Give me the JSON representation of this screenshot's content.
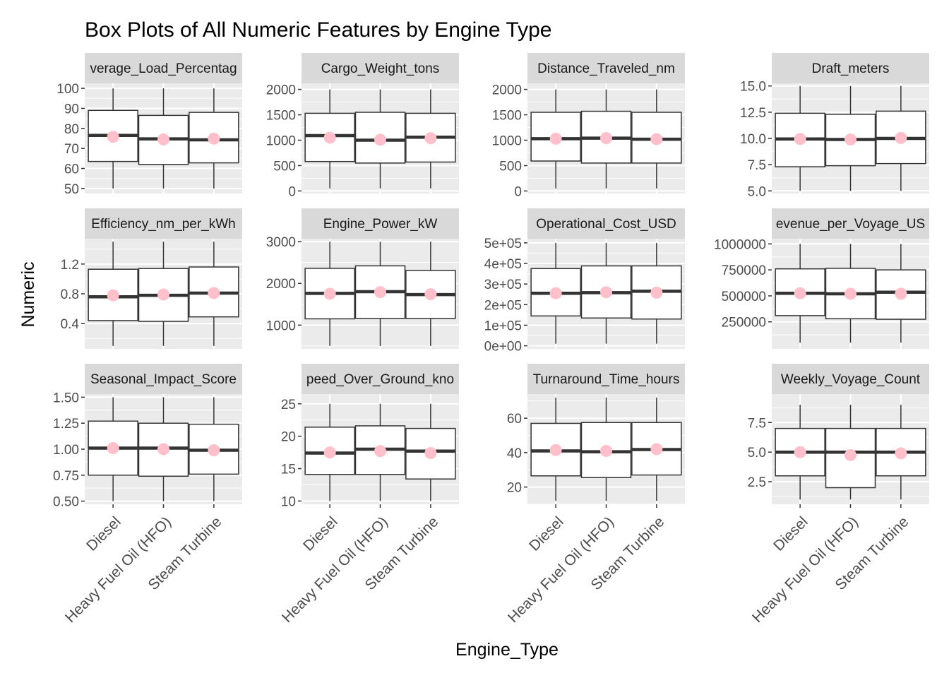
{
  "chart_data": {
    "type": "boxplot",
    "title": "Box Plots of All Numeric Features by Engine Type",
    "xlabel": "Engine_Type",
    "ylabel": "Numeric",
    "categories": [
      "Diesel",
      "Heavy Fuel Oil (HFO)",
      "Steam Turbine"
    ],
    "colors": {
      "panel_bg": "#ebebeb",
      "grid": "#ffffff",
      "strip_bg": "#d9d9d9",
      "box": "#333333",
      "mean_point": "#ffc0cb"
    },
    "facets": [
      {
        "name": "Average_Load_Percentage",
        "strip_label": "verage_Load_Percentag",
        "ylim": [
          47.5,
          102.5
        ],
        "yticks": [
          50,
          60,
          70,
          80,
          90,
          100
        ],
        "ytick_labels": [
          "50",
          "60",
          "70",
          "80",
          "90",
          "100"
        ],
        "boxes": [
          {
            "min": 50,
            "q1": 63.5,
            "median": 76.5,
            "q3": 89,
            "max": 100,
            "mean": 75.8
          },
          {
            "min": 50,
            "q1": 62,
            "median": 74.8,
            "q3": 86.5,
            "max": 100,
            "mean": 74.5
          },
          {
            "min": 50,
            "q1": 62.8,
            "median": 74.3,
            "q3": 88,
            "max": 100,
            "mean": 74.9
          }
        ]
      },
      {
        "name": "Cargo_Weight_tons",
        "strip_label": "Cargo_Weight_tons",
        "ylim": [
          -50,
          2120
        ],
        "yticks": [
          0,
          500,
          1000,
          1500,
          2000
        ],
        "ytick_labels": [
          "0",
          "500",
          "1000",
          "1500",
          "2000"
        ],
        "boxes": [
          {
            "min": 50,
            "q1": 580,
            "median": 1090,
            "q3": 1530,
            "max": 2000,
            "mean": 1050
          },
          {
            "min": 50,
            "q1": 550,
            "median": 1000,
            "q3": 1550,
            "max": 2000,
            "mean": 1010
          },
          {
            "min": 50,
            "q1": 570,
            "median": 1060,
            "q3": 1530,
            "max": 2000,
            "mean": 1040
          }
        ]
      },
      {
        "name": "Distance_Traveled_nm",
        "strip_label": "Distance_Traveled_nm",
        "ylim": [
          -50,
          2120
        ],
        "yticks": [
          0,
          500,
          1000,
          1500,
          2000
        ],
        "ytick_labels": [
          "0",
          "500",
          "1000",
          "1500",
          "2000"
        ],
        "boxes": [
          {
            "min": 50,
            "q1": 590,
            "median": 1030,
            "q3": 1550,
            "max": 2000,
            "mean": 1030
          },
          {
            "min": 50,
            "q1": 550,
            "median": 1040,
            "q3": 1570,
            "max": 2000,
            "mean": 1040
          },
          {
            "min": 50,
            "q1": 550,
            "median": 1020,
            "q3": 1550,
            "max": 2000,
            "mean": 1020
          }
        ]
      },
      {
        "name": "Draft_meters",
        "strip_label": "Draft_meters",
        "ylim": [
          4.75,
          15.25
        ],
        "yticks": [
          5,
          7.5,
          10,
          12.5,
          15
        ],
        "ytick_labels": [
          "5.0",
          "7.5",
          "10.0",
          "12.5",
          "15.0"
        ],
        "boxes": [
          {
            "min": 5,
            "q1": 7.3,
            "median": 9.95,
            "q3": 12.4,
            "max": 15,
            "mean": 9.95
          },
          {
            "min": 5,
            "q1": 7.4,
            "median": 9.9,
            "q3": 12.3,
            "max": 15,
            "mean": 9.9
          },
          {
            "min": 5,
            "q1": 7.6,
            "median": 10.0,
            "q3": 12.6,
            "max": 15,
            "mean": 10.05
          }
        ]
      },
      {
        "name": "Efficiency_nm_per_kWh",
        "strip_label": "Efficiency_nm_per_kWh",
        "ylim": [
          0.06,
          1.54
        ],
        "yticks": [
          0.4,
          0.8,
          1.2
        ],
        "ytick_labels": [
          "0.4",
          "0.8",
          "1.2"
        ],
        "boxes": [
          {
            "min": 0.1,
            "q1": 0.44,
            "median": 0.76,
            "q3": 1.13,
            "max": 1.5,
            "mean": 0.78
          },
          {
            "min": 0.1,
            "q1": 0.43,
            "median": 0.78,
            "q3": 1.14,
            "max": 1.5,
            "mean": 0.79
          },
          {
            "min": 0.1,
            "q1": 0.49,
            "median": 0.81,
            "q3": 1.16,
            "max": 1.5,
            "mean": 0.81
          }
        ]
      },
      {
        "name": "Engine_Power_kW",
        "strip_label": "Engine_Power_kW",
        "ylim": [
          430,
          3070
        ],
        "yticks": [
          1000,
          2000,
          3000
        ],
        "ytick_labels": [
          "1000",
          "2000",
          "3000"
        ],
        "boxes": [
          {
            "min": 500,
            "q1": 1150,
            "median": 1760,
            "q3": 2360,
            "max": 3000,
            "mean": 1750
          },
          {
            "min": 500,
            "q1": 1160,
            "median": 1800,
            "q3": 2420,
            "max": 3000,
            "mean": 1790
          },
          {
            "min": 500,
            "q1": 1160,
            "median": 1730,
            "q3": 2310,
            "max": 3000,
            "mean": 1740
          }
        ]
      },
      {
        "name": "Operational_Cost_USD",
        "strip_label": "Operational_Cost_USD",
        "ylim": [
          -15000,
          520000
        ],
        "yticks": [
          0,
          100000,
          200000,
          300000,
          400000,
          500000
        ],
        "ytick_labels": [
          "0e+00",
          "1e+05",
          "2e+05",
          "3e+05",
          "4e+05",
          "5e+05"
        ],
        "boxes": [
          {
            "min": 10000,
            "q1": 145000,
            "median": 255000,
            "q3": 375000,
            "max": 500000,
            "mean": 255000
          },
          {
            "min": 10000,
            "q1": 135000,
            "median": 258000,
            "q3": 388000,
            "max": 500000,
            "mean": 260000
          },
          {
            "min": 10000,
            "q1": 130000,
            "median": 265000,
            "q3": 388000,
            "max": 500000,
            "mean": 258000
          }
        ]
      },
      {
        "name": "Revenue_per_Voyage_USD",
        "strip_label": "evenue_per_Voyage_US",
        "ylim": [
          -10000,
          1050000
        ],
        "yticks": [
          250000,
          500000,
          750000,
          1000000
        ],
        "ytick_labels": [
          "250000",
          "500000",
          "750000",
          "1000000"
        ],
        "boxes": [
          {
            "min": 50000,
            "q1": 310000,
            "median": 525000,
            "q3": 760000,
            "max": 1000000,
            "mean": 525000
          },
          {
            "min": 50000,
            "q1": 280000,
            "median": 520000,
            "q3": 765000,
            "max": 1000000,
            "mean": 520000
          },
          {
            "min": 50000,
            "q1": 275000,
            "median": 535000,
            "q3": 750000,
            "max": 1000000,
            "mean": 520000
          }
        ]
      },
      {
        "name": "Seasonal_Impact_Score",
        "strip_label": "Seasonal_Impact_Score",
        "ylim": [
          0.47,
          1.53
        ],
        "yticks": [
          0.5,
          0.75,
          1.0,
          1.25,
          1.5
        ],
        "ytick_labels": [
          "0.50",
          "0.75",
          "1.00",
          "1.25",
          "1.50"
        ],
        "boxes": [
          {
            "min": 0.5,
            "q1": 0.75,
            "median": 1.01,
            "q3": 1.27,
            "max": 1.5,
            "mean": 1.01
          },
          {
            "min": 0.5,
            "q1": 0.74,
            "median": 1.01,
            "q3": 1.25,
            "max": 1.5,
            "mean": 1.0
          },
          {
            "min": 0.5,
            "q1": 0.76,
            "median": 0.99,
            "q3": 1.24,
            "max": 1.5,
            "mean": 0.99
          }
        ]
      },
      {
        "name": "Speed_Over_Ground_knots",
        "strip_label": "peed_Over_Ground_kno",
        "ylim": [
          9.5,
          26.5
        ],
        "yticks": [
          10,
          15,
          20,
          25
        ],
        "ytick_labels": [
          "10",
          "15",
          "20",
          "25"
        ],
        "boxes": [
          {
            "min": 10,
            "q1": 14.1,
            "median": 17.4,
            "q3": 21.4,
            "max": 25,
            "mean": 17.5
          },
          {
            "min": 10,
            "q1": 14.1,
            "median": 18.0,
            "q3": 21.6,
            "max": 25,
            "mean": 17.7
          },
          {
            "min": 10,
            "q1": 13.4,
            "median": 17.7,
            "q3": 21.2,
            "max": 25,
            "mean": 17.4
          }
        ]
      },
      {
        "name": "Turnaround_Time_hours",
        "strip_label": "Turnaround_Time_hours",
        "ylim": [
          10,
          74
        ],
        "yticks": [
          20,
          40,
          60
        ],
        "ytick_labels": [
          "20",
          "40",
          "60"
        ],
        "boxes": [
          {
            "min": 12,
            "q1": 26.5,
            "median": 41,
            "q3": 57,
            "max": 72,
            "mean": 41.5
          },
          {
            "min": 12,
            "q1": 25.5,
            "median": 40.5,
            "q3": 57.5,
            "max": 72,
            "mean": 41
          },
          {
            "min": 12,
            "q1": 27,
            "median": 41.8,
            "q3": 57.5,
            "max": 72,
            "mean": 42
          }
        ]
      },
      {
        "name": "Weekly_Voyage_Count",
        "strip_label": "Weekly_Voyage_Count",
        "ylim": [
          0.6,
          9.9
        ],
        "yticks": [
          2.5,
          5.0,
          7.5
        ],
        "ytick_labels": [
          "2.5",
          "5.0",
          "7.5"
        ],
        "boxes": [
          {
            "min": 1,
            "q1": 3,
            "median": 5,
            "q3": 7,
            "max": 9,
            "mean": 5.0
          },
          {
            "min": 1,
            "q1": 2,
            "median": 5,
            "q3": 7,
            "max": 9,
            "mean": 4.75
          },
          {
            "min": 1,
            "q1": 3,
            "median": 5,
            "q3": 7,
            "max": 9,
            "mean": 4.9
          }
        ]
      }
    ]
  }
}
